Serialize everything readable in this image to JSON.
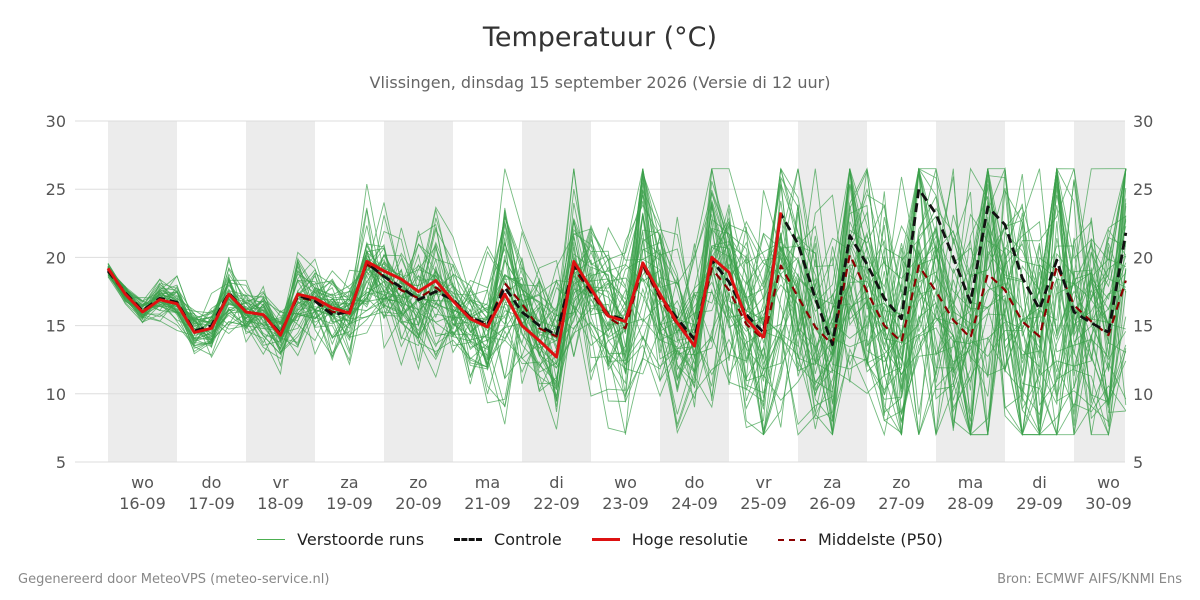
{
  "title": "Temperatuur (°C)",
  "subtitle": "Vlissingen, dinsdag 15 september 2026 (Versie di 12 uur)",
  "footer": {
    "left": "Gegenereerd door MeteoVPS (meteo-service.nl)",
    "right": "Bron: ECMWF AIFS/KNMI Ens"
  },
  "legend": [
    {
      "label": "Verstoorde runs",
      "color": "#4caf50",
      "style": "thin"
    },
    {
      "label": "Controle",
      "color": "#111111",
      "style": "dashed"
    },
    {
      "label": "Hoge resolutie",
      "color": "#dd1111",
      "style": "solid"
    },
    {
      "label": "Middelste (P50)",
      "color": "#8b0000",
      "style": "dashed"
    }
  ],
  "chart_data": {
    "type": "line",
    "xlabel": "",
    "ylabel": "",
    "ylim": [
      5,
      30
    ],
    "yticks": [
      5,
      10,
      15,
      20,
      25,
      30
    ],
    "grid": true,
    "legend_position": "bottom",
    "x_unit": "days since 2026-09-15 12:00",
    "days": [
      {
        "day": "wo",
        "date": "16-09",
        "shaded": true
      },
      {
        "day": "do",
        "date": "17-09",
        "shaded": false
      },
      {
        "day": "vr",
        "date": "18-09",
        "shaded": true
      },
      {
        "day": "za",
        "date": "19-09",
        "shaded": false
      },
      {
        "day": "zo",
        "date": "20-09",
        "shaded": true
      },
      {
        "day": "ma",
        "date": "21-09",
        "shaded": false
      },
      {
        "day": "di",
        "date": "22-09",
        "shaded": true
      },
      {
        "day": "wo",
        "date": "23-09",
        "shaded": false
      },
      {
        "day": "do",
        "date": "24-09",
        "shaded": true
      },
      {
        "day": "vr",
        "date": "25-09",
        "shaded": false
      },
      {
        "day": "za",
        "date": "26-09",
        "shaded": true
      },
      {
        "day": "zo",
        "date": "27-09",
        "shaded": false
      },
      {
        "day": "ma",
        "date": "28-09",
        "shaded": true
      },
      {
        "day": "di",
        "date": "29-09",
        "shaded": false
      },
      {
        "day": "wo",
        "date": "30-09",
        "shaded": true
      }
    ],
    "colors": {
      "ensemble": "#3aa04a",
      "control": "#111111",
      "hires": "#dd1111",
      "median": "#8b0000",
      "shade": "#ececec",
      "grid": "#dddddd"
    },
    "ensemble_members": 50,
    "series": [
      {
        "name": "Hoge resolutie",
        "x": [
          0,
          0.25,
          0.5,
          0.75,
          1,
          1.25,
          1.5,
          1.75,
          2,
          2.25,
          2.5,
          2.75,
          3,
          3.25,
          3.5,
          3.75,
          4,
          4.25,
          4.5,
          4.75,
          5,
          5.25,
          5.5,
          5.75,
          6,
          6.25,
          6.5,
          6.75,
          7,
          7.25,
          7.5,
          7.75,
          8,
          8.25,
          8.5,
          8.75,
          9,
          9.25,
          9.5
        ],
        "values": [
          19.2,
          17.3,
          16.0,
          16.9,
          16.6,
          14.5,
          14.8,
          17.3,
          16.0,
          15.8,
          14.3,
          17.3,
          17.0,
          16.3,
          15.9,
          19.7,
          19.0,
          18.4,
          17.5,
          18.3,
          16.8,
          15.5,
          14.9,
          17.3,
          15.0,
          13.9,
          12.7,
          19.7,
          17.7,
          15.7,
          15.3,
          19.6,
          17.3,
          15.2,
          13.5,
          20.0,
          18.9,
          15.5,
          14.1
        ]
      },
      {
        "name": "Hoge resolutie (laatste piek)",
        "x": [
          9.5,
          9.75
        ],
        "values": [
          14.1,
          23.3
        ]
      },
      {
        "name": "Controle",
        "x": [
          0,
          0.25,
          0.5,
          0.75,
          1,
          1.25,
          1.5,
          1.75,
          2,
          2.25,
          2.5,
          2.75,
          3,
          3.25,
          3.5,
          3.75,
          4,
          4.25,
          4.5,
          4.75,
          5,
          5.25,
          5.5,
          5.75,
          6,
          6.25,
          6.5,
          6.75,
          7,
          7.25,
          7.5,
          7.75,
          8,
          8.25,
          8.5,
          8.75,
          9,
          9.25,
          9.5,
          9.75,
          10,
          10.25,
          10.5,
          10.75,
          11,
          11.25,
          11.5,
          11.75,
          12,
          12.25,
          12.5,
          12.75,
          13,
          13.25,
          13.5,
          13.75,
          14,
          14.25,
          14.5
        ],
        "values": [
          19.0,
          17.4,
          16.1,
          17.0,
          16.7,
          14.6,
          15.0,
          17.4,
          16.0,
          15.8,
          14.4,
          17.2,
          16.8,
          15.8,
          16.0,
          19.6,
          18.6,
          17.8,
          16.9,
          17.5,
          16.9,
          15.6,
          15.1,
          17.8,
          16.0,
          15.0,
          14.3,
          19.5,
          17.5,
          15.8,
          15.4,
          19.5,
          17.2,
          15.5,
          14.0,
          19.8,
          18.2,
          15.8,
          14.5,
          23.2,
          21.0,
          17.0,
          13.6,
          21.6,
          19.5,
          17.0,
          15.5,
          25.0,
          23.2,
          20.0,
          16.7,
          23.7,
          22.4,
          18.5,
          16.2,
          19.8,
          16.0,
          15.2,
          14.5
        ]
      },
      {
        "name": "Controle (einde)",
        "x": [
          14.5,
          14.75
        ],
        "values": [
          14.5,
          21.8
        ]
      },
      {
        "name": "Middelste (P50)",
        "x": [
          0,
          0.25,
          0.5,
          0.75,
          1,
          1.25,
          1.5,
          1.75,
          2,
          2.25,
          2.5,
          2.75,
          3,
          3.25,
          3.5,
          3.75,
          4,
          4.25,
          4.5,
          4.75,
          5,
          5.25,
          5.5,
          5.75,
          6,
          6.25,
          6.5,
          6.75,
          7,
          7.25,
          7.5,
          7.75,
          8,
          8.25,
          8.5,
          8.75,
          9,
          9.25,
          9.5,
          9.75,
          10,
          10.25,
          10.5,
          10.75,
          11,
          11.25,
          11.5,
          11.75,
          12,
          12.25,
          12.5,
          12.75,
          13,
          13.25,
          13.5,
          13.75,
          14,
          14.25,
          14.5,
          14.75
        ],
        "values": [
          19.1,
          17.3,
          16.1,
          16.9,
          16.7,
          14.6,
          14.9,
          17.3,
          16.0,
          15.8,
          14.4,
          17.1,
          16.8,
          16.0,
          16.0,
          19.5,
          18.6,
          17.6,
          17.0,
          17.8,
          16.8,
          15.6,
          15.0,
          18.1,
          16.6,
          14.8,
          14.2,
          19.2,
          17.4,
          15.6,
          14.8,
          19.4,
          17.0,
          15.1,
          14.0,
          19.2,
          17.6,
          15.1,
          14.0,
          19.4,
          17.1,
          14.9,
          13.6,
          20.2,
          17.5,
          15.0,
          13.8,
          19.4,
          17.5,
          15.4,
          14.1,
          18.8,
          17.6,
          15.3,
          14.2,
          19.4,
          16.5,
          15.3,
          14.3,
          18.3
        ]
      }
    ]
  }
}
